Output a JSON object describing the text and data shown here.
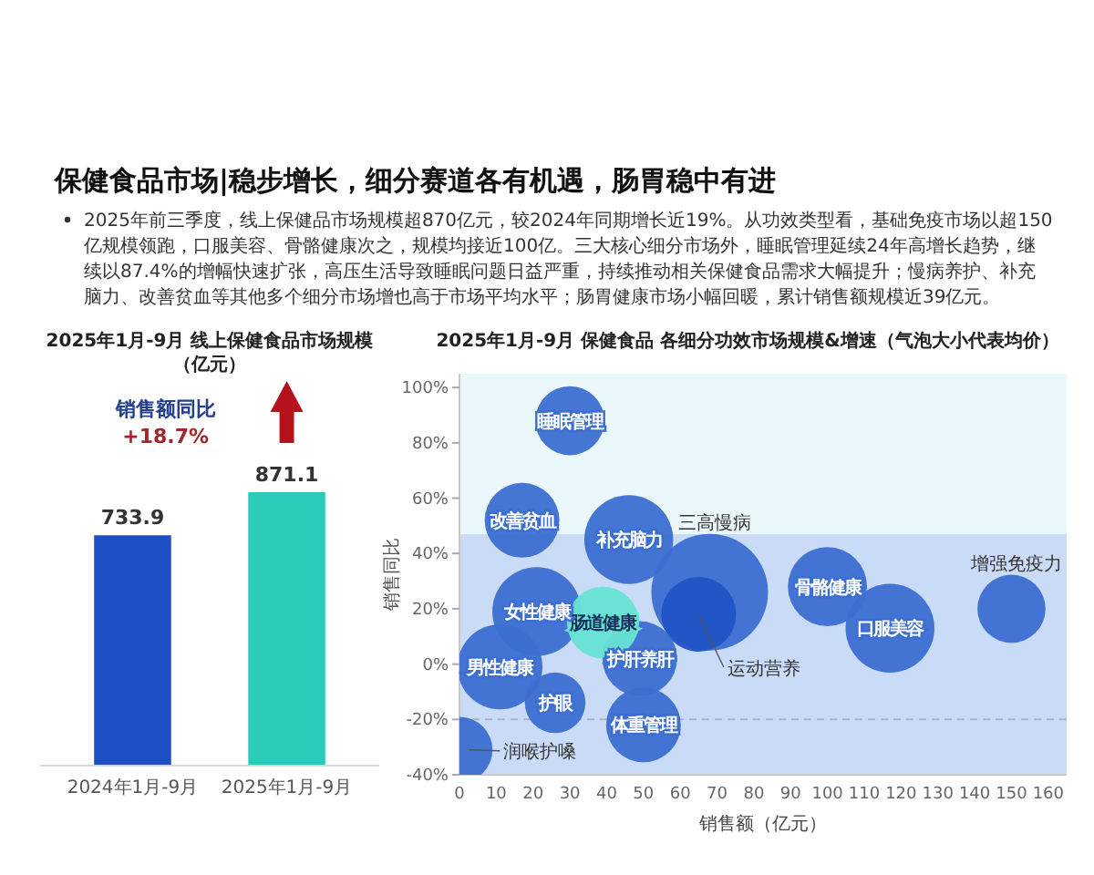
{
  "chart_data": [
    {
      "type": "other",
      "title": "保健食品市场|稳步增长，细分赛道各有机遇，肠胃稳中有进",
      "annotations": [
        "2025年前三季度，线上保健品市场规模超870亿元，较2024年同期增长近19%。从功效类型看，基础免疫市场以超150亿规模领跑，口服美容、骨骼健康次之，规模均接近100亿。三大核心细分市场外，睡眠管理延续24年高增长趋势，继续以87.4%的增幅快速扩张，高压生活导致睡眠问题日益严重，持续推动相关保健食品需求大幅提升；慢病养护、补充脑力、改善贫血等其他多个细分市场增也高于市场平均水平；肠胃健康市场小幅回暖，累计销售额规模近39亿元。"
      ]
    },
    {
      "type": "bar",
      "title": "2025年1月-9月 线上保健食品市场规模（亿元）",
      "categories": [
        "2024年1月-9月",
        "2025年1月-9月"
      ],
      "values": [
        733.9,
        871.1
      ],
      "colors": [
        "#1f4fc6",
        "#2ccab8"
      ],
      "data_labels": true,
      "tick_labels": "x",
      "annotations": [
        "销售额同比",
        "+18.7%"
      ]
    },
    {
      "type": "bubble",
      "title": "2025年1月-9月 保健食品 各细分功效市场规模&增速（气泡大小代表均价）",
      "xlabel": "销售额（亿元）",
      "ylabel": "销售同比",
      "xlim": [
        0,
        165
      ],
      "xticks": [
        0,
        10,
        20,
        30,
        40,
        50,
        60,
        70,
        80,
        90,
        100,
        110,
        120,
        130,
        140,
        150,
        160
      ],
      "ylim": [
        -40,
        105
      ],
      "yticks": [
        {
          "value": -40,
          "label": "-40%"
        },
        {
          "value": -20,
          "label": "-20%"
        },
        {
          "value": 0,
          "label": "0%"
        },
        {
          "value": 20,
          "label": "20%"
        },
        {
          "value": 40,
          "label": "40%"
        },
        {
          "value": 60,
          "label": "60%"
        },
        {
          "value": 80,
          "label": "80%"
        },
        {
          "value": 100,
          "label": "100%"
        }
      ],
      "bands": [
        {
          "axis": "y",
          "from": 47,
          "to": 105,
          "color": "#eaf8fb"
        },
        {
          "axis": "y",
          "from": -40,
          "to": 47,
          "color": "#c9dbf6"
        }
      ],
      "ref_lines": [
        {
          "axis": "y",
          "value": -20,
          "color": "#aab3c2",
          "line_style": "dashed"
        }
      ],
      "series": [
        {
          "name": "睡眠管理",
          "color": "#3d6fd1",
          "x": [
            30
          ],
          "values": [
            88
          ],
          "sizes": [
            0.35
          ]
        },
        {
          "name": "改善贫血",
          "color": "#3d6fd1",
          "x": [
            17
          ],
          "values": [
            52
          ],
          "sizes": [
            0.41
          ]
        },
        {
          "name": "补充脑力",
          "color": "#3d6fd1",
          "x": [
            46
          ],
          "values": [
            45
          ],
          "sizes": [
            0.58
          ]
        },
        {
          "name": "三高慢病",
          "color": "#3d6fd1",
          "x": [
            68
          ],
          "values": [
            26
          ],
          "sizes": [
            1
          ]
        },
        {
          "name": "运动营养",
          "color": "#2153c4",
          "x": [
            65
          ],
          "values": [
            18
          ],
          "sizes": [
            0.41
          ]
        },
        {
          "name": "肠道健康",
          "color": "#66e3d3",
          "x": [
            39
          ],
          "values": [
            15
          ],
          "sizes": [
            0.38
          ]
        },
        {
          "name": "女性健康",
          "color": "#3d6fd1",
          "x": [
            21
          ],
          "values": [
            19
          ],
          "sizes": [
            0.58
          ]
        },
        {
          "name": "男性健康",
          "color": "#3d6fd1",
          "x": [
            11
          ],
          "values": [
            -1
          ],
          "sizes": [
            0.53
          ]
        },
        {
          "name": "护肝养肝",
          "color": "#3d6fd1",
          "x": [
            49
          ],
          "values": [
            2
          ],
          "sizes": [
            0.41
          ]
        },
        {
          "name": "护眼",
          "color": "#3d6fd1",
          "x": [
            26
          ],
          "values": [
            -14
          ],
          "sizes": [
            0.27
          ]
        },
        {
          "name": "体重管理",
          "color": "#3d6fd1",
          "x": [
            50
          ],
          "values": [
            -22
          ],
          "sizes": [
            0.41
          ]
        },
        {
          "name": "润喉护嗓",
          "color": "#3d6fd1",
          "x": [
            0
          ],
          "values": [
            -31
          ],
          "sizes": [
            0.32
          ]
        },
        {
          "name": "骨骼健康",
          "color": "#3d6fd1",
          "x": [
            100
          ],
          "values": [
            28
          ],
          "sizes": [
            0.46
          ]
        },
        {
          "name": "口服美容",
          "color": "#3d6fd1",
          "x": [
            117
          ],
          "values": [
            13
          ],
          "sizes": [
            0.58
          ]
        },
        {
          "name": "增强免疫力",
          "color": "#3d6fd1",
          "x": [
            150
          ],
          "values": [
            20
          ],
          "sizes": [
            0.34
          ]
        }
      ]
    }
  ]
}
